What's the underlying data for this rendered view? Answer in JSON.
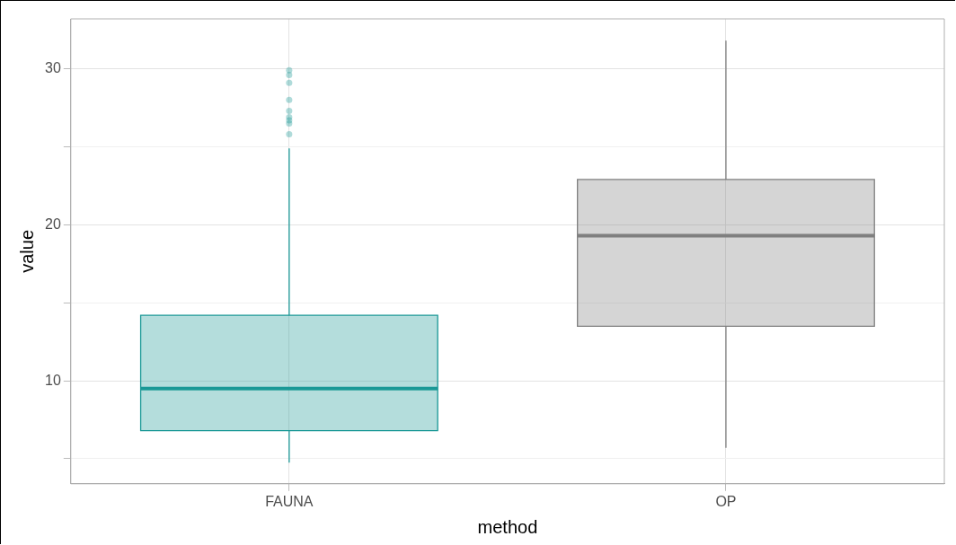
{
  "chart_data": {
    "type": "box",
    "xlabel": "method",
    "ylabel": "value",
    "categories": [
      "FAUNA",
      "OP"
    ],
    "colors": [
      "#1a9896",
      "#7f7f7f"
    ],
    "boxes": [
      {
        "low": 4.75,
        "q1": 6.8,
        "median": 9.5,
        "q3": 14.2,
        "high": 24.9,
        "outliers": [
          29.9,
          29.6,
          29.1,
          28.0,
          27.3,
          26.9,
          26.7,
          26.5,
          25.8
        ]
      },
      {
        "low": 5.7,
        "q1": 13.5,
        "median": 19.3,
        "q3": 22.9,
        "high": 31.8
      }
    ],
    "ylim": [
      3.4,
      33.2
    ],
    "yticks": [
      {
        "value": 5,
        "label": null
      },
      10,
      {
        "value": 15,
        "label": null
      },
      20,
      {
        "value": 25,
        "label": null
      },
      30
    ],
    "grid": true
  }
}
